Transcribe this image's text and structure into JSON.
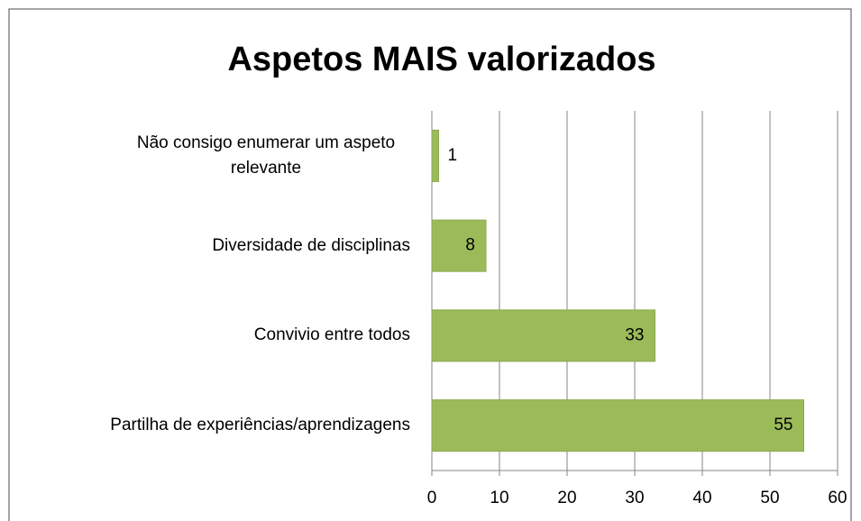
{
  "chart_data": {
    "type": "bar",
    "orientation": "horizontal",
    "title": "Aspetos MAIS valorizados",
    "categories": [
      "Não consigo enumerar um aspeto relevante",
      "Diversidade de disciplinas",
      "Convivio entre todos",
      "Partilha de experiências/aprendizagens"
    ],
    "values": [
      1,
      8,
      33,
      55
    ],
    "color": "#9bbb59",
    "xlim": [
      0,
      60
    ],
    "xticks": [
      0,
      10,
      20,
      30,
      40,
      50,
      60
    ],
    "grid": true
  }
}
